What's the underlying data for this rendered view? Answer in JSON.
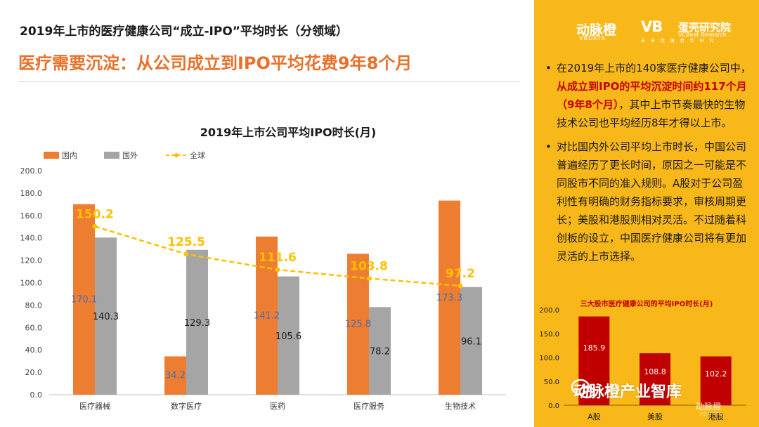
{
  "header": {
    "title": "2019年上市的医疗健康公司“成立-IPO”平均时长（分领域）",
    "headline": "医疗需要沉淀：从公司成立到IPO平均花费9年8个月"
  },
  "brand": {
    "name_a": "动脉橙",
    "sub_a": "VBDATA",
    "name_b": "VB",
    "name_c": "蛋壳研究院",
    "sub_c": "VCBeat Research",
    "sub_c2": "未 来 医 健 趋 势 研 究"
  },
  "bullets": {
    "b1": {
      "dot": "•",
      "pre": "在2019年上市的140家医疗健康公司中，",
      "highlight": "从成立到IPO的平均沉淀时间约117个月（9年8个月）",
      "post": "，其中上市节奏最快的生物技术公司也平均经历8年才得以上市。"
    },
    "b2": {
      "dot": "•",
      "text": "对比国内外公司平均上市时长，中国公司普遍经历了更长时间，原因之一可能是不同股市不同的准入规则。A股对于公司盈利性有明确的财务指标要求，审核周期更长；美股和港股则相对灵活。不过随着科创板的设立，中国医疗健康公司将有更加灵活的上市选择。"
    }
  },
  "watermark": {
    "text": "动脉橙产业智库",
    "logo": "动脉橙",
    "logo_sub": "VBDATA"
  },
  "colors": {
    "domestic": "#ed7d31",
    "foreign": "#a5a5a5",
    "global": "#ffc000",
    "accent": "#e8702a",
    "panel": "#f9b81a",
    "mini_bar": "#c00000"
  },
  "chart_data": [
    {
      "type": "bar",
      "title": "2019年上市公司平均IPO时长(月)",
      "categories": [
        "医疗器械",
        "数字医疗",
        "医药",
        "医疗服务",
        "生物技术"
      ],
      "series": [
        {
          "name": "国内",
          "type": "bar",
          "values": [
            170.1,
            34.2,
            141.2,
            125.8,
            173.3
          ]
        },
        {
          "name": "国外",
          "type": "bar",
          "values": [
            140.3,
            129.3,
            105.6,
            78.2,
            96.1
          ]
        },
        {
          "name": "全球",
          "type": "line",
          "values": [
            150.2,
            125.5,
            111.6,
            103.8,
            97.2
          ]
        }
      ],
      "ylim": [
        0,
        200
      ],
      "yticks": [
        "0.0",
        "20.0",
        "40.0",
        "60.0",
        "80.0",
        "100.0",
        "120.0",
        "140.0",
        "160.0",
        "180.0",
        "200.0"
      ],
      "legend_position": "top-left",
      "grid": false
    },
    {
      "type": "bar",
      "title": "三大股市医疗健康公司的平均IPO时长(月)",
      "categories": [
        "A股",
        "美股",
        "港股"
      ],
      "values": [
        185.9,
        108.8,
        102.2
      ],
      "ylim": [
        0,
        200
      ],
      "yticks": [
        "0.0",
        "50.0",
        "100.0",
        "150.0",
        "200.0"
      ],
      "grid": false
    }
  ]
}
